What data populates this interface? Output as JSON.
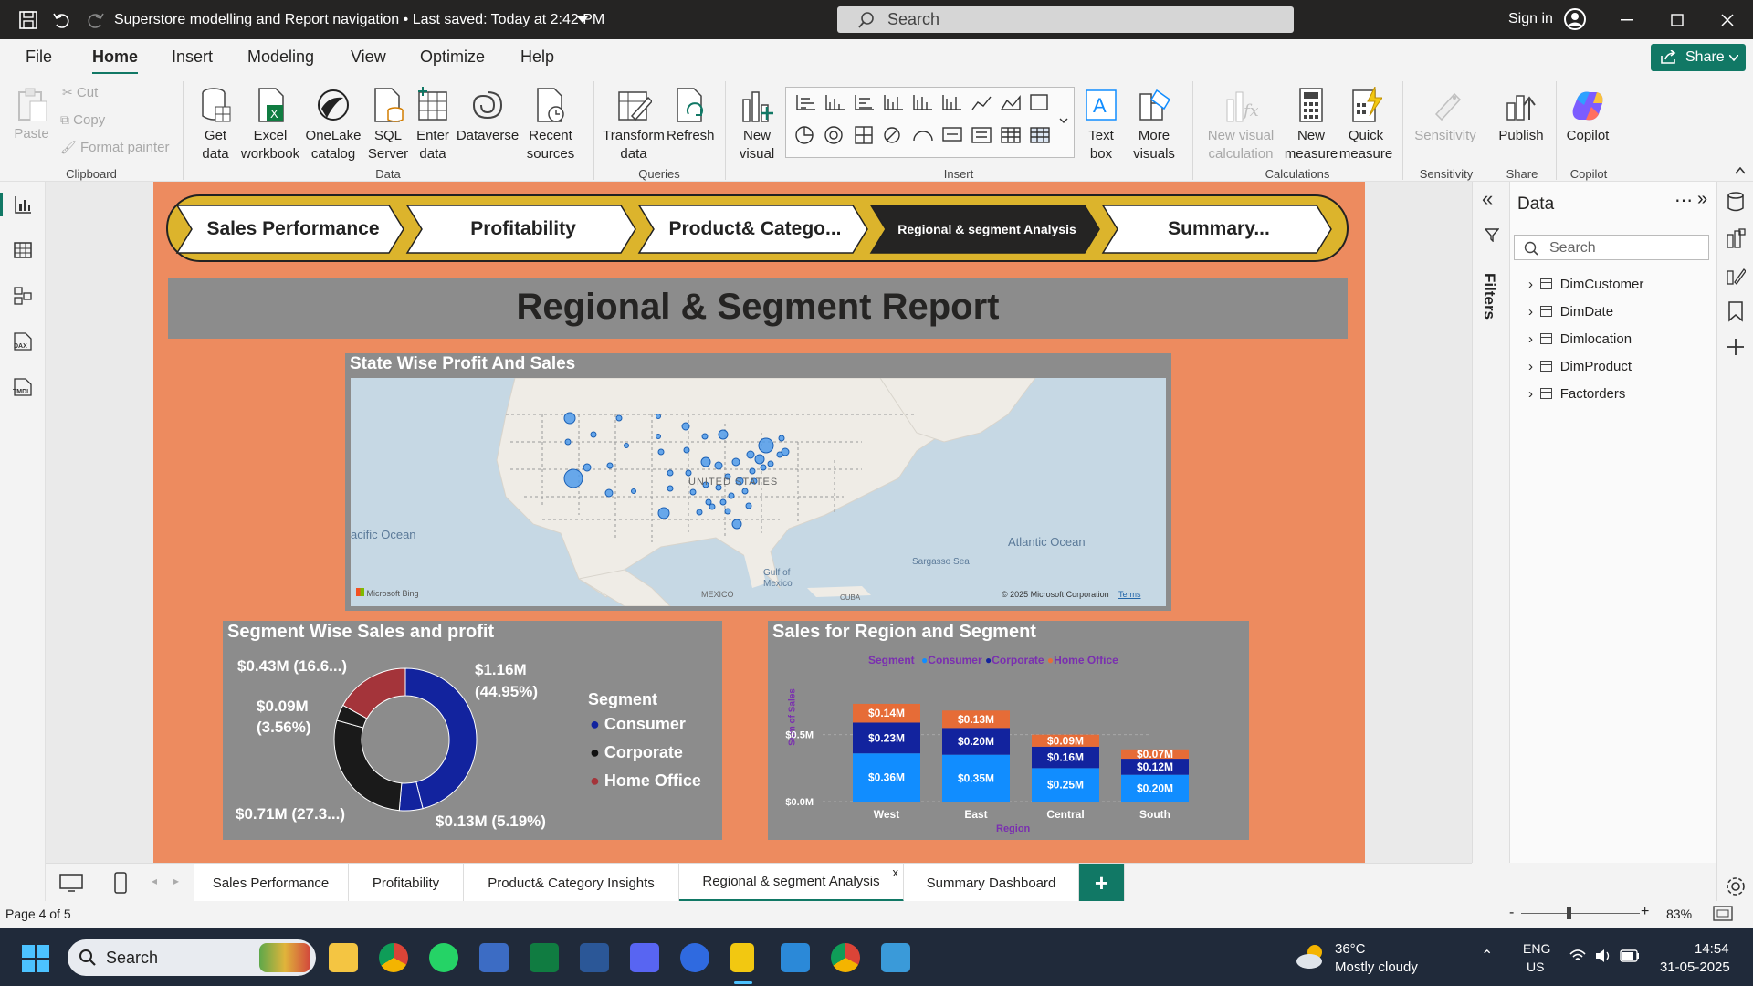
{
  "titlebar": {
    "title": "Superstore modelling and Report navigation • Last saved: Today at 2:42 PM",
    "search_placeholder": "Search",
    "sign_in": "Sign in"
  },
  "menu": {
    "tabs": [
      "File",
      "Home",
      "Insert",
      "Modeling",
      "View",
      "Optimize",
      "Help"
    ],
    "share": "Share"
  },
  "ribbon": {
    "clipboard": {
      "paste": "Paste",
      "cut": "Cut",
      "copy": "Copy",
      "format_painter": "Format painter",
      "group": "Clipboard"
    },
    "data": {
      "get_data": "Get data",
      "excel": "Excel workbook",
      "onelake": "OneLake catalog",
      "sql": "SQL Server",
      "enter": "Enter data",
      "dataverse": "Dataverse",
      "recent": "Recent sources",
      "group": "Data"
    },
    "queries": {
      "transform": "Transform data",
      "refresh": "Refresh",
      "group": "Queries"
    },
    "insert": {
      "new_visual": "New visual",
      "text_box": "Text box",
      "more_visuals": "More visuals",
      "group": "Insert"
    },
    "calc": {
      "new_visual_calc": "New visual calculation",
      "new_measure": "New measure",
      "quick_measure": "Quick measure",
      "group": "Calculations"
    },
    "sensitivity": {
      "label": "Sensitivity",
      "group": "Sensitivity"
    },
    "share": {
      "publish": "Publish",
      "group": "Share"
    },
    "copilot": {
      "label": "Copilot",
      "group": "Copilot"
    }
  },
  "report": {
    "nav": [
      "Sales Performance",
      "Profitability",
      "Product& Catego...",
      "Regional & segment Analysis",
      "Summary..."
    ],
    "title": "Regional & Segment Report",
    "map": {
      "title": "State Wise Profit And Sales",
      "labels": {
        "usa": "UNITED STATES",
        "pacific": "acific Ocean",
        "atlantic": "Atlantic Ocean",
        "gulf": "Gulf of Mexico",
        "sargasso": "Sargasso Sea",
        "mexico": "MEXICO",
        "cuba": "CUBA",
        "bing": "Microsoft Bing",
        "copyright": "© 2025 Microsoft Corporation",
        "terms": "Terms"
      }
    },
    "donut": {
      "title": "Segment Wise Sales and profit",
      "legend_title": "Segment",
      "legend": [
        "Consumer",
        "Corporate",
        "Home Office"
      ],
      "labels": [
        "$1.16M (44.95%)",
        "$0.13M (5.19%)",
        "$0.71M (27.3...)",
        "$0.09M (3.56%)",
        "$0.43M (16.6...)"
      ]
    },
    "bar": {
      "title": "Sales for Region and Segment",
      "legend_title": "Segment",
      "legend": [
        "Consumer",
        "Corporate",
        "Home Office"
      ],
      "ylabel": "Sum of Sales",
      "xlabel": "Region",
      "yticks": [
        "$0.5M",
        "$0.0M"
      ],
      "labels": {
        "West": [
          "$0.36M",
          "$0.23M",
          "$0.14M"
        ],
        "East": [
          "$0.35M",
          "$0.20M",
          "$0.13M"
        ],
        "Central": [
          "$0.25M",
          "$0.16M",
          "$0.09M"
        ],
        "South": [
          "$0.20M",
          "$0.12M",
          "$0.07M"
        ]
      }
    }
  },
  "chart_data": [
    {
      "type": "pie",
      "title": "Segment Wise Sales and profit",
      "series": [
        {
          "name": "Consumer",
          "values": [
            1.16,
            0.13
          ]
        },
        {
          "name": "Corporate",
          "values": [
            0.71
          ]
        },
        {
          "name": "Home Office",
          "values": [
            0.43,
            0.09
          ]
        }
      ],
      "slices": [
        {
          "label": "$1.16M (44.95%)",
          "value": 44.95,
          "color": "#12239e"
        },
        {
          "label": "$0.13M (5.19%)",
          "value": 5.19,
          "color": "#12239e"
        },
        {
          "label": "$0.71M (27.3...)",
          "value": 27.3,
          "color": "#1a1a1a"
        },
        {
          "label": "$0.09M (3.56%)",
          "value": 3.56,
          "color": "#1a1a1a"
        },
        {
          "label": "$0.43M (16.6...)",
          "value": 16.6,
          "color": "#a4343a"
        }
      ]
    },
    {
      "type": "bar",
      "stacked": true,
      "title": "Sales for Region and Segment",
      "categories": [
        "West",
        "East",
        "Central",
        "South"
      ],
      "series": [
        {
          "name": "Consumer",
          "values": [
            0.36,
            0.35,
            0.25,
            0.2
          ],
          "color": "#118dff"
        },
        {
          "name": "Corporate",
          "values": [
            0.23,
            0.2,
            0.16,
            0.12
          ],
          "color": "#12239e"
        },
        {
          "name": "Home Office",
          "values": [
            0.14,
            0.13,
            0.09,
            0.07
          ],
          "color": "#e66c37"
        }
      ],
      "xlabel": "Region",
      "ylabel": "Sum of Sales",
      "ylim": [
        0,
        0.75
      ]
    }
  ],
  "data_pane": {
    "title": "Data",
    "search": "Search",
    "tables": [
      "DimCustomer",
      "DimDate",
      "Dimlocation",
      "DimProduct",
      "Factorders"
    ],
    "filters": "Filters"
  },
  "pagetabs": [
    "Sales Performance",
    "Profitability",
    "Product& Category Insights",
    "Regional & segment Analysis",
    "Summary Dashboard"
  ],
  "status": {
    "page": "Page 4 of 5",
    "zoom": "83%"
  },
  "taskbar": {
    "search": "Search",
    "temp": "36°C",
    "weather": "Mostly cloudy",
    "lang1": "ENG",
    "lang2": "US",
    "time": "14:54",
    "date": "31-05-2025"
  },
  "colors": {
    "consumer": "#118dff",
    "corporate": "#12239e",
    "home_office": "#e66c37",
    "report_bg": "#ed8b5f",
    "nav_gold": "#dcb42c"
  }
}
